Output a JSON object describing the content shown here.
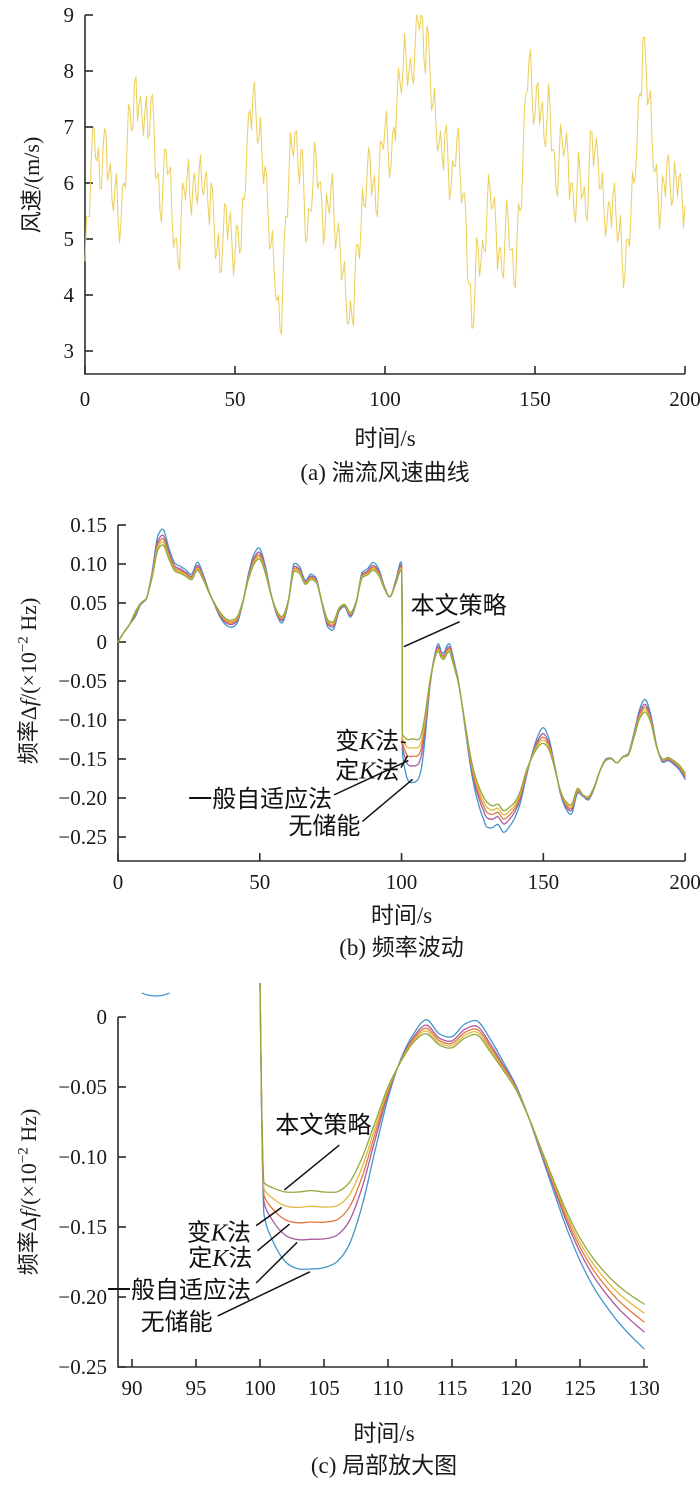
{
  "figure_title": "",
  "chart_data": [
    {
      "id": "a",
      "type": "line",
      "caption": "(a) 湍流风速曲线",
      "xlabel": "时间/s",
      "ylabel": "风速/(m/s)",
      "xlim": [
        0,
        200
      ],
      "ylim": [
        3,
        9
      ],
      "grid": false,
      "legend": "none (single series)",
      "xticks": {
        "v": [
          0,
          50,
          100,
          150,
          200
        ],
        "t": [
          "0",
          "50",
          "100",
          "150",
          "200"
        ]
      },
      "yticks": {
        "v": [
          3,
          4,
          5,
          6,
          7,
          8,
          9
        ],
        "t": [
          "3",
          "4",
          "5",
          "6",
          "7",
          "8",
          "9"
        ]
      },
      "series": [
        {
          "name": "湍流风速",
          "slug": "wind-speed",
          "color": "#ecd05c",
          "x_start": 0,
          "x_step": 1,
          "values": [
            4.6,
            5.4,
            6.3,
            7.0,
            6.4,
            5.9,
            6.6,
            6.9,
            6.2,
            5.7,
            5.9,
            5.4,
            5.3,
            6.0,
            6.6,
            7.3,
            7.0,
            7.9,
            7.4,
            7.2,
            7.3,
            6.8,
            7.5,
            7.0,
            6.1,
            5.5,
            6.0,
            6.6,
            6.2,
            5.4,
            5.0,
            4.6,
            5.3,
            5.9,
            6.1,
            5.7,
            6.0,
            5.8,
            6.2,
            5.9,
            6.1,
            5.6,
            6.0,
            5.3,
            4.8,
            4.4,
            5.0,
            5.6,
            5.3,
            4.9,
            4.7,
            5.2,
            4.8,
            5.7,
            6.7,
            7.3,
            7.6,
            7.2,
            6.8,
            6.5,
            6.3,
            5.5,
            4.9,
            4.5,
            3.9,
            3.4,
            4.3,
            5.4,
            6.2,
            6.6,
            6.9,
            6.3,
            6.6,
            5.8,
            5.0,
            5.5,
            6.0,
            6.5,
            6.0,
            5.6,
            5.2,
            5.6,
            5.9,
            5.4,
            5.1,
            4.9,
            4.4,
            3.9,
            3.5,
            3.6,
            4.4,
            4.9,
            5.2,
            5.6,
            6.1,
            6.5,
            6.0,
            5.5,
            6.2,
            6.7,
            7.0,
            6.6,
            6.3,
            7.0,
            7.5,
            7.8,
            8.0,
            8.3,
            8.0,
            7.9,
            8.4,
            8.9,
            9.0,
            8.2,
            8.8,
            8.0,
            7.4,
            7.0,
            6.7,
            6.5,
            6.9,
            6.4,
            5.9,
            6.3,
            6.8,
            6.2,
            5.8,
            5.4,
            4.2,
            3.4,
            4.1,
            4.9,
            4.6,
            4.8,
            5.5,
            5.9,
            5.6,
            5.2,
            4.8,
            4.4,
            5.0,
            5.4,
            4.8,
            4.2,
            5.0,
            5.5,
            6.5,
            7.6,
            8.2,
            7.6,
            7.2,
            7.8,
            7.3,
            6.8,
            7.1,
            7.4,
            6.6,
            5.9,
            6.4,
            6.8,
            6.6,
            6.5,
            6.0,
            5.5,
            5.9,
            6.2,
            5.8,
            5.4,
            6.2,
            6.9,
            6.6,
            6.4,
            5.9,
            5.5,
            5.3,
            5.6,
            5.8,
            5.4,
            5.1,
            4.7,
            4.4,
            5.0,
            5.5,
            6.0,
            6.7,
            7.6,
            8.6,
            8.1,
            7.5,
            6.8,
            6.2,
            5.8,
            5.5,
            6.0,
            6.4,
            6.0,
            5.7,
            6.1,
            6.1,
            5.8,
            5.6
          ],
          "jitter_pattern": [
            0.38,
            -0.45,
            0.3,
            -0.25,
            0.48,
            -0.35,
            0.22,
            -0.5,
            0.4,
            -0.3,
            0.52,
            -0.42,
            0.28,
            -0.38,
            0.45,
            -0.22,
            0.35,
            -0.55,
            0.25,
            -0.4,
            0.5,
            -0.28,
            0.33,
            -0.47
          ]
        }
      ]
    },
    {
      "id": "b",
      "type": "line",
      "caption": "(b) 频率波动",
      "xlabel": "时间/s",
      "ylabel_parts": {
        "p1": "频率Δ",
        "f": "f",
        "p2": "/(×10",
        "sup": "−2",
        "p3": " Hz)"
      },
      "xlim": [
        0,
        200
      ],
      "ylim": [
        -0.25,
        0.15
      ],
      "grid": false,
      "legend": "annotated labels with leader lines (no legend box)",
      "xticks": {
        "v": [
          0,
          50,
          100,
          150,
          200
        ],
        "t": [
          "0",
          "50",
          "100",
          "150",
          "200"
        ]
      },
      "yticks": {
        "v": [
          0.15,
          0.1,
          0.05,
          0,
          -0.05,
          -0.1,
          -0.15,
          -0.2,
          -0.25
        ],
        "t": [
          "0.15",
          "0.10",
          "0.05",
          "0",
          "−0.05",
          "−0.10",
          "−0.15",
          "−0.20",
          "−0.25"
        ]
      },
      "x": [
        0,
        2,
        4,
        6,
        8,
        10,
        12,
        14,
        16,
        18,
        20,
        22,
        24,
        26,
        28,
        30,
        32,
        34,
        36,
        38,
        40,
        42,
        44,
        46,
        48,
        50,
        52,
        54,
        56,
        58,
        60,
        62,
        64,
        66,
        68,
        70,
        72,
        74,
        76,
        78,
        80,
        82,
        84,
        86,
        88,
        90,
        92,
        94,
        96,
        98,
        100,
        100.3,
        101,
        102,
        103,
        104,
        105,
        106,
        107,
        108,
        109,
        110,
        111,
        112,
        113,
        114,
        115,
        116,
        117,
        118,
        119,
        120,
        121,
        122,
        123,
        124,
        125,
        126,
        127,
        128,
        129,
        130,
        132,
        134,
        136,
        138,
        140,
        142,
        144,
        146,
        148,
        150,
        152,
        154,
        156,
        158,
        160,
        162,
        164,
        166,
        168,
        170,
        172,
        174,
        176,
        178,
        180,
        182,
        184,
        186,
        188,
        190,
        192,
        194,
        196,
        198,
        200
      ],
      "base": [
        0.0,
        0.012,
        0.022,
        0.038,
        0.05,
        0.056,
        0.082,
        0.118,
        0.124,
        0.106,
        0.091,
        0.088,
        0.084,
        0.08,
        0.092,
        0.08,
        0.064,
        0.05,
        0.038,
        0.03,
        0.028,
        0.032,
        0.052,
        0.08,
        0.1,
        0.106,
        0.088,
        0.06,
        0.04,
        0.033,
        0.052,
        0.09,
        0.088,
        0.074,
        0.08,
        0.076,
        0.05,
        0.028,
        0.026,
        0.044,
        0.048,
        0.038,
        0.052,
        0.082,
        0.086,
        0.092,
        0.085,
        0.068,
        0.058,
        0.075,
        0.09,
        -0.118,
        -0.122,
        -0.125,
        -0.125,
        -0.124,
        -0.125,
        -0.125,
        -0.118,
        -0.1,
        -0.075,
        -0.05,
        -0.032,
        -0.018,
        -0.012,
        -0.02,
        -0.022,
        -0.015,
        -0.013,
        -0.025,
        -0.038,
        -0.052,
        -0.072,
        -0.095,
        -0.118,
        -0.14,
        -0.158,
        -0.172,
        -0.183,
        -0.192,
        -0.199,
        -0.205,
        -0.21,
        -0.208,
        -0.216,
        -0.212,
        -0.205,
        -0.19,
        -0.165,
        -0.148,
        -0.135,
        -0.13,
        -0.138,
        -0.162,
        -0.19,
        -0.205,
        -0.208,
        -0.188,
        -0.196,
        -0.198,
        -0.185,
        -0.165,
        -0.152,
        -0.15,
        -0.155,
        -0.148,
        -0.145,
        -0.122,
        -0.098,
        -0.09,
        -0.105,
        -0.135,
        -0.15,
        -0.148,
        -0.152,
        -0.158,
        -0.168
      ],
      "dev": [
        0.0,
        0.0,
        0.0,
        -0.006,
        -0.002,
        -0.001,
        0.007,
        0.018,
        0.02,
        0.014,
        0.01,
        0.009,
        0.008,
        0.007,
        0.01,
        0.007,
        0.002,
        -0.002,
        -0.006,
        -0.008,
        -0.009,
        -0.008,
        -0.002,
        0.007,
        0.013,
        0.014,
        0.009,
        0.001,
        -0.005,
        -0.008,
        -0.002,
        0.01,
        0.009,
        0.005,
        0.007,
        0.005,
        -0.002,
        -0.009,
        -0.01,
        -0.004,
        -0.003,
        -0.006,
        -0.002,
        0.007,
        0.008,
        0.01,
        0.008,
        0.003,
        0.0,
        0.005,
        0.01,
        -0.022,
        -0.038,
        -0.05,
        -0.055,
        -0.056,
        -0.054,
        -0.05,
        -0.044,
        -0.034,
        -0.02,
        -0.008,
        0.002,
        0.006,
        0.01,
        0.008,
        0.008,
        0.01,
        0.01,
        0.009,
        0.006,
        0.003,
        0.0,
        -0.004,
        -0.008,
        -0.012,
        -0.016,
        -0.02,
        -0.023,
        -0.026,
        -0.029,
        -0.032,
        -0.028,
        -0.026,
        -0.028,
        -0.025,
        -0.02,
        -0.015,
        -0.008,
        0.004,
        0.014,
        0.02,
        0.014,
        0.004,
        -0.004,
        -0.009,
        -0.012,
        -0.006,
        -0.002,
        -0.004,
        -0.002,
        0.0,
        0.002,
        0.001,
        0.0,
        0.001,
        0.002,
        0.006,
        0.012,
        0.016,
        0.01,
        0.002,
        -0.004,
        -0.004,
        -0.005,
        -0.006,
        -0.008
      ],
      "series": [
        {
          "name": "无储能",
          "slug": "no-storage",
          "color": "#4594c8",
          "k": 1.0
        },
        {
          "name": "一般自适应法",
          "slug": "general-adaptive",
          "color": "#a75ba2",
          "k": 0.62
        },
        {
          "name": "定K法",
          "slug": "fixed-k",
          "color": "#e2793f",
          "k": 0.4
        },
        {
          "name": "变K法",
          "slug": "variable-k",
          "color": "#e2b841",
          "k": 0.2
        },
        {
          "name": "本文策略",
          "slug": "proposed-strategy",
          "color": "#90a83c",
          "k": 0.0
        }
      ],
      "annotations": [
        {
          "slug": "proposed-strategy",
          "parts": [
            {
              "t": "本文策略"
            }
          ],
          "x": 103.2,
          "y": 0.047,
          "anchor": "start",
          "line": [
            120.5,
            0.026,
            100.8,
            -0.006
          ]
        },
        {
          "slug": "variable-k",
          "parts": [
            {
              "t": "变"
            },
            {
              "t": "K",
              "i": 1
            },
            {
              "t": "法"
            }
          ],
          "x": 99.2,
          "y": -0.127,
          "anchor": "end",
          "line": [
            99.8,
            -0.128,
            101.5,
            -0.129
          ]
        },
        {
          "slug": "fixed-k",
          "parts": [
            {
              "t": "定"
            },
            {
              "t": "K",
              "i": 1
            },
            {
              "t": "法"
            }
          ],
          "x": 99.2,
          "y": -0.165,
          "anchor": "end",
          "line": [
            99.8,
            -0.161,
            102.1,
            -0.146
          ]
        },
        {
          "slug": "general-adaptive",
          "parts": [
            {
              "t": "一般自适应法"
            }
          ],
          "x": 75.5,
          "y": -0.201,
          "anchor": "end",
          "line": [
            76.2,
            -0.196,
            102.4,
            -0.152
          ]
        },
        {
          "slug": "no-storage",
          "parts": [
            {
              "t": "无储能"
            }
          ],
          "x": 85.5,
          "y": -0.236,
          "anchor": "end",
          "line": [
            86.2,
            -0.23,
            103.9,
            -0.176
          ]
        }
      ]
    },
    {
      "id": "c",
      "type": "line",
      "caption": "(c) 局部放大图",
      "xlabel": "时间/s",
      "ylabel_parts": {
        "p1": "频率Δ",
        "f": "f",
        "p2": "/(×10",
        "sup": "−2",
        "p3": " Hz)"
      },
      "xlim": [
        90,
        130
      ],
      "ylim": [
        -0.25,
        0.02
      ],
      "grid": false,
      "legend": "annotated labels with leader lines (no legend box)",
      "note": "zoomed view of chart b over x 90–130; series values shared with chart b",
      "source": "b",
      "draw_from_x": 100,
      "xticks": {
        "v": [
          90,
          95,
          100,
          105,
          110,
          115,
          120,
          125,
          130
        ],
        "t": [
          "90",
          "95",
          "100",
          "105",
          "110",
          "115",
          "120",
          "125",
          "130"
        ]
      },
      "yticks": {
        "v": [
          0,
          -0.05,
          -0.1,
          -0.15,
          -0.2,
          -0.25
        ],
        "t": [
          "0",
          "−0.05",
          "−0.10",
          "−0.15",
          "−0.20",
          "−0.25"
        ]
      },
      "extra_segments": [
        {
          "slug": "no-storage-clipped-arc",
          "color": "#4594c8",
          "points": [
            [
              90.8,
              0.017
            ],
            [
              91.3,
              0.0155
            ],
            [
              91.9,
              0.015
            ],
            [
              92.4,
              0.0155
            ],
            [
              92.9,
              0.017
            ]
          ]
        }
      ],
      "annotations": [
        {
          "slug": "proposed-strategy",
          "parts": [
            {
              "t": "本文策略"
            }
          ],
          "x": 101.2,
          "y": -0.077,
          "anchor": "start",
          "line": [
            106.2,
            -0.0915,
            101.9,
            -0.1235
          ]
        },
        {
          "slug": "variable-k",
          "parts": [
            {
              "t": "变"
            },
            {
              "t": "K",
              "i": 1
            },
            {
              "t": "法"
            }
          ],
          "x": 99.3,
          "y": -0.154,
          "anchor": "end",
          "line": [
            99.7,
            -0.149,
            101.7,
            -0.136
          ]
        },
        {
          "slug": "fixed-k",
          "parts": [
            {
              "t": "定"
            },
            {
              "t": "K",
              "i": 1
            },
            {
              "t": "法"
            }
          ],
          "x": 99.4,
          "y": -0.172,
          "anchor": "end",
          "line": [
            99.8,
            -0.167,
            102.3,
            -0.148
          ]
        },
        {
          "slug": "general-adaptive",
          "parts": [
            {
              "t": "一般自适应法"
            }
          ],
          "x": 99.3,
          "y": -0.195,
          "anchor": "end",
          "line": [
            99.7,
            -0.19,
            102.9,
            -0.161
          ]
        },
        {
          "slug": "no-storage",
          "parts": [
            {
              "t": "无储能"
            }
          ],
          "x": 96.3,
          "y": -0.218,
          "anchor": "end",
          "line": [
            96.7,
            -0.2135,
            103.9,
            -0.182
          ]
        }
      ]
    }
  ]
}
